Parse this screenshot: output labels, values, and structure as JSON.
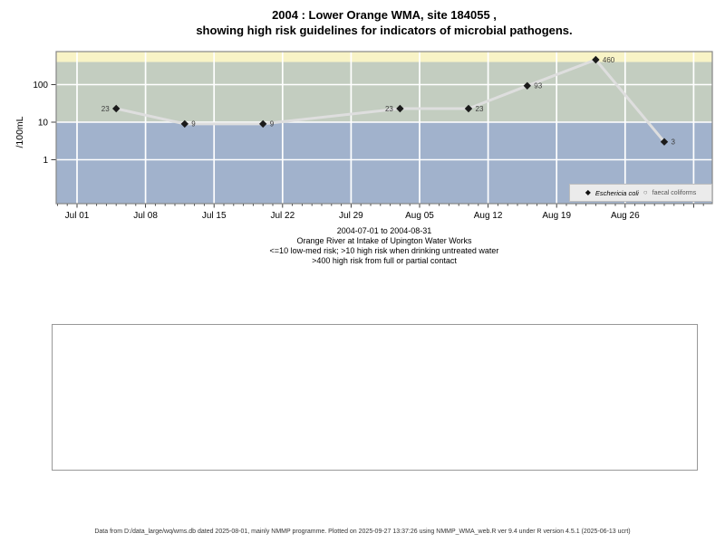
{
  "title": {
    "line1": "2004 : Lower Orange WMA, site 184055 ,",
    "line2": "showing high risk guidelines for indicators of microbial pathogens."
  },
  "chart_data": {
    "type": "line",
    "title": "2004 : Lower Orange WMA, site 184055 , showing high risk guidelines for indicators of microbial pathogens.",
    "ylabel": "/100mL",
    "x_axis": {
      "origin": "2004-07-01",
      "tick_labels": [
        "Jul 01",
        "Jul 08",
        "Jul 15",
        "Jul 22",
        "Jul 29",
        "Aug 05",
        "Aug 12",
        "Aug 19",
        "Aug 26"
      ],
      "tick_interval_days": 7,
      "minor_tick_interval_days": 1,
      "weekly_gridline_count": 10
    },
    "y_axis": {
      "scale": "log10",
      "ticks": [
        100,
        10,
        1
      ],
      "unit": "/100mL"
    },
    "series": [
      {
        "name": "Eschericia coli",
        "marker": "filled-diamond",
        "marker_color": "#1b1b1b",
        "line_color": "#dedede",
        "label_color": "#3c3c3c",
        "points": [
          {
            "date": "2004-07-05",
            "value": 23,
            "label_side": "left"
          },
          {
            "date": "2004-07-12",
            "value": 9,
            "label_side": "right"
          },
          {
            "date": "2004-07-20",
            "value": 9,
            "label_side": "right"
          },
          {
            "date": "2004-08-03",
            "value": 23,
            "label_side": "left"
          },
          {
            "date": "2004-08-10",
            "value": 23,
            "label_side": "right"
          },
          {
            "date": "2004-08-16",
            "value": 93,
            "label_side": "right"
          },
          {
            "date": "2004-08-23",
            "value": 460,
            "label_side": "right"
          },
          {
            "date": "2004-08-30",
            "value": 3,
            "label_side": "right"
          }
        ]
      },
      {
        "name": "faecal coliforms",
        "marker": "open-circle",
        "marker_color": "#707070",
        "points": []
      }
    ],
    "legend": [
      {
        "symbol": "filled-diamond",
        "label": "Eschericia coli"
      },
      {
        "symbol": "open-circle",
        "label": "faecal coliforms"
      }
    ],
    "legend_position": "bottom-right",
    "bands": [
      {
        "range": ">400",
        "min": 400,
        "meaning": "high risk from full or partial contact",
        "color": "#f8f3c6"
      },
      {
        "range": "10-400",
        "min": 10,
        "meaning": "high risk when drinking untreated water",
        "color": "#c3cdc0"
      },
      {
        "range": "<=10",
        "meaning": "low-med risk",
        "color": "#a1b2cc"
      }
    ],
    "grid": true,
    "gridline_color": "#ffffff",
    "plot_border_color": "#868686"
  },
  "caption": {
    "line1": "2004-07-01 to 2004-08-31",
    "line2": "Orange River at Intake of Upington Water Works",
    "line3": "<=10 low-med risk; >10 high risk when drinking untreated water",
    "line4": ">400 high risk from full or partial contact"
  },
  "footer": {
    "text": "Data from D:/data_large/wq/wms.db dated 2025-08-01, mainly NMMP programme. Plotted on 2025-09-27 13:37:26 using NMMP_WMA_web.R ver 9.4 under R version 4.5.1 (2025-06-13 ucrt)"
  }
}
